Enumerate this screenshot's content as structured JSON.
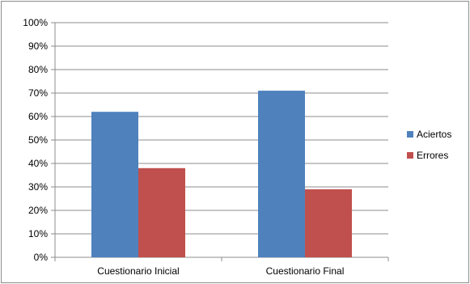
{
  "chart_data": {
    "type": "bar",
    "categories": [
      "Cuestionario Inicial",
      "Cuestionario Final"
    ],
    "series": [
      {
        "name": "Aciertos",
        "color": "#4F81BD",
        "values": [
          62,
          71
        ]
      },
      {
        "name": "Errores",
        "color": "#C0504D",
        "values": [
          38,
          29
        ]
      }
    ],
    "ylim": [
      0,
      100
    ],
    "ytick_step": 10,
    "ytick_suffix": "%",
    "grid": true,
    "legend": "right"
  }
}
